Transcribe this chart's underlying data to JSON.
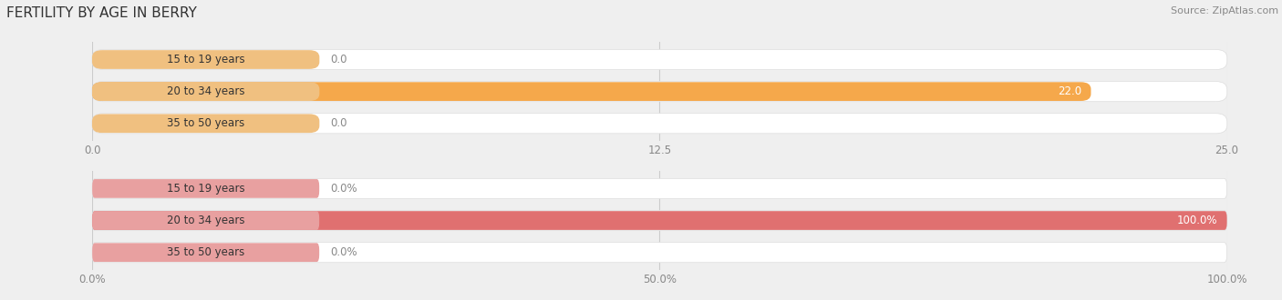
{
  "title": "FERTILITY BY AGE IN BERRY",
  "source": "Source: ZipAtlas.com",
  "chart1": {
    "categories": [
      "15 to 19 years",
      "20 to 34 years",
      "35 to 50 years"
    ],
    "values": [
      0.0,
      22.0,
      0.0
    ],
    "xlim": [
      0,
      25.0
    ],
    "xticks": [
      0.0,
      12.5,
      25.0
    ],
    "xtick_labels": [
      "0.0",
      "12.5",
      "25.0"
    ],
    "bar_color": "#F5A84B",
    "label_stub_color": "#F0C080",
    "bar_height": 0.62,
    "value_label_inside_color": "#FFFFFF",
    "value_label_outside_color": "#888888"
  },
  "chart2": {
    "categories": [
      "15 to 19 years",
      "20 to 34 years",
      "35 to 50 years"
    ],
    "values": [
      0.0,
      100.0,
      0.0
    ],
    "xlim": [
      0,
      100.0
    ],
    "xticks": [
      0.0,
      50.0,
      100.0
    ],
    "xtick_labels": [
      "0.0%",
      "50.0%",
      "100.0%"
    ],
    "bar_color": "#E07070",
    "label_stub_color": "#E8A0A0",
    "bar_height": 0.62,
    "value_label_inside_color": "#FFFFFF",
    "value_label_outside_color": "#888888"
  },
  "bg_color": "#EFEFEF",
  "bar_bg_color": "#FFFFFF",
  "grid_color": "#CCCCCC",
  "label_font_size": 8.5,
  "title_font_size": 11,
  "source_font_size": 8
}
